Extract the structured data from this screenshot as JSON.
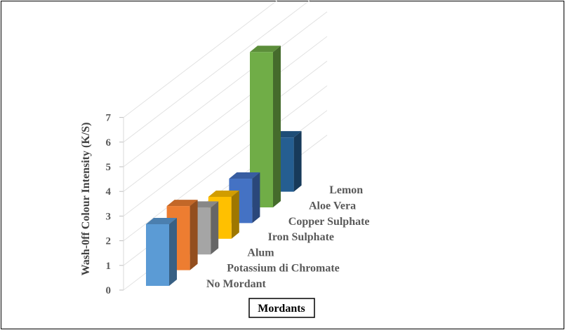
{
  "chart_data": {
    "type": "bar",
    "categories": [
      "No Mordant",
      "Potassium di Chromate",
      "Alum",
      "Iron Sulphate",
      "Copper Sulphate",
      "Aloe Vera",
      "Lemon"
    ],
    "values": [
      2.5,
      2.6,
      1.9,
      1.7,
      1.8,
      6.3,
      2.2
    ],
    "colors": [
      "#5B9BD5",
      "#ED7D31",
      "#A5A5A5",
      "#FFC000",
      "#4472C4",
      "#70AD47",
      "#255E91"
    ],
    "ylabel": "Wash-0ff  Colour Intensity  (K/S)",
    "xlabel": "Mordants",
    "ylim": [
      0,
      7
    ],
    "yticks": [
      "0",
      "1",
      "2",
      "3",
      "4",
      "5",
      "6",
      "7"
    ],
    "grid": true,
    "style": "3d-column"
  }
}
